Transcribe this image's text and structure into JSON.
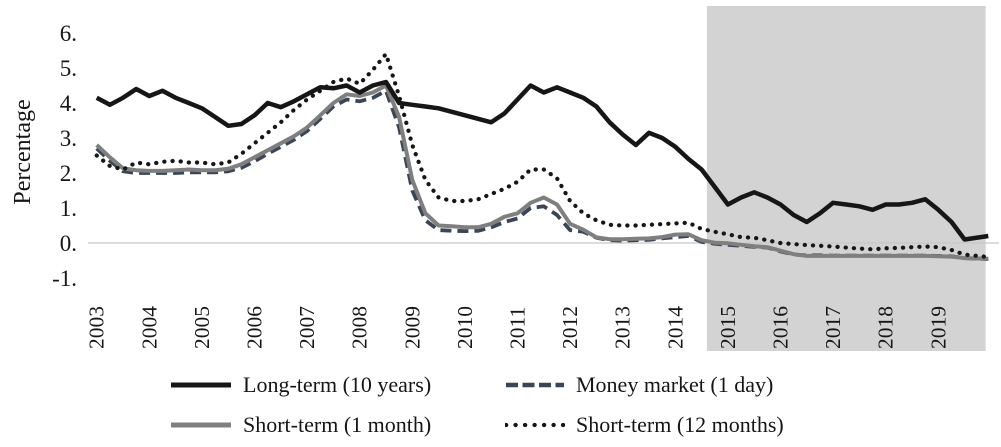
{
  "page": {
    "background": "#ffffff",
    "text_color": "#161616"
  },
  "chart_data": {
    "type": "line",
    "title": "",
    "xlabel": "",
    "ylabel": "Percentage",
    "ylim": [
      -1,
      6
    ],
    "xlim": [
      2003,
      2020
    ],
    "grid": "zero horizontal gridline only",
    "legend_position": "bottom, two columns, two rows",
    "zero_line_color": "#c8c8c8",
    "shaded_region": {
      "from_x": 2014.6,
      "to_x": 2019.9,
      "color": "#d3d3d3",
      "note": "gray highlighted period from mid-2014 through 2019"
    },
    "yticks": {
      "values": [
        6,
        5,
        4,
        3,
        2,
        1,
        0,
        -1
      ],
      "labels": [
        "6.",
        "5.",
        "4.",
        "3.",
        "2.",
        "1.",
        "0.",
        "-1."
      ]
    },
    "xticks": {
      "values": [
        2003,
        2004,
        2005,
        2006,
        2007,
        2008,
        2009,
        2010,
        2011,
        2012,
        2013,
        2014,
        2015,
        2016,
        2017,
        2018,
        2019
      ],
      "labels": [
        "2003",
        "2004",
        "2005",
        "2006",
        "2007",
        "2008",
        "2009",
        "2010",
        "2011",
        "2012",
        "2013",
        "2014",
        "2015",
        "2016",
        "2017",
        "2018",
        "2019"
      ]
    },
    "x": [
      2003,
      2003.25,
      2003.5,
      2003.75,
      2004,
      2004.25,
      2004.5,
      2004.75,
      2005,
      2005.25,
      2005.5,
      2005.75,
      2006,
      2006.25,
      2006.5,
      2006.75,
      2007,
      2007.25,
      2007.5,
      2007.75,
      2008,
      2008.25,
      2008.5,
      2008.75,
      2009,
      2009.25,
      2009.5,
      2009.75,
      2010,
      2010.25,
      2010.5,
      2010.75,
      2011,
      2011.25,
      2011.5,
      2011.75,
      2012,
      2012.25,
      2012.5,
      2012.75,
      2013,
      2013.25,
      2013.5,
      2013.75,
      2014,
      2014.25,
      2014.5,
      2014.75,
      2015,
      2015.25,
      2015.5,
      2015.75,
      2016,
      2016.25,
      2016.5,
      2016.75,
      2017,
      2017.25,
      2017.5,
      2017.75,
      2018,
      2018.25,
      2018.5,
      2018.75,
      2019,
      2019.25,
      2019.5,
      2019.95
    ],
    "series": [
      {
        "name": "Long-term (10 years)",
        "color": "#161616",
        "line_style": "solid",
        "stroke_width": 4.5,
        "values": [
          4.15,
          3.95,
          4.15,
          4.4,
          4.2,
          4.35,
          4.15,
          4.0,
          3.85,
          3.6,
          3.35,
          3.4,
          3.65,
          4.0,
          3.88,
          4.05,
          4.25,
          4.45,
          4.42,
          4.5,
          4.3,
          4.5,
          4.6,
          4.0,
          3.95,
          3.9,
          3.85,
          3.75,
          3.65,
          3.55,
          3.45,
          3.7,
          4.1,
          4.5,
          4.3,
          4.45,
          4.3,
          4.15,
          3.9,
          3.45,
          3.1,
          2.8,
          3.15,
          3.0,
          2.75,
          2.4,
          2.1,
          1.6,
          1.1,
          1.3,
          1.45,
          1.3,
          1.1,
          0.8,
          0.6,
          0.85,
          1.15,
          1.1,
          1.05,
          0.95,
          1.1,
          1.1,
          1.15,
          1.25,
          0.95,
          0.6,
          0.1,
          0.2
        ]
      },
      {
        "name": "Money market (1 day)",
        "color": "#3a4556",
        "line_style": "dashed",
        "stroke_width": 3.8,
        "values": [
          2.7,
          2.35,
          2.05,
          2.0,
          2.0,
          2.0,
          2.0,
          2.02,
          2.02,
          2.02,
          2.05,
          2.15,
          2.33,
          2.55,
          2.75,
          2.95,
          3.2,
          3.55,
          3.9,
          4.1,
          4.05,
          4.15,
          4.35,
          3.3,
          1.5,
          0.65,
          0.37,
          0.35,
          0.34,
          0.35,
          0.45,
          0.6,
          0.7,
          1.0,
          1.05,
          0.8,
          0.37,
          0.32,
          0.15,
          0.08,
          0.07,
          0.08,
          0.09,
          0.13,
          0.17,
          0.2,
          0.03,
          -0.02,
          -0.05,
          -0.08,
          -0.11,
          -0.13,
          -0.24,
          -0.33,
          -0.35,
          -0.35,
          -0.36,
          -0.36,
          -0.36,
          -0.36,
          -0.36,
          -0.36,
          -0.36,
          -0.36,
          -0.37,
          -0.38,
          -0.43,
          -0.46
        ]
      },
      {
        "name": "Short-term (1 month)",
        "color": "#7f7f7f",
        "line_style": "solid",
        "stroke_width": 4,
        "values": [
          2.8,
          2.45,
          2.13,
          2.08,
          2.06,
          2.06,
          2.08,
          2.1,
          2.08,
          2.08,
          2.12,
          2.25,
          2.45,
          2.65,
          2.85,
          3.05,
          3.3,
          3.65,
          4.0,
          4.25,
          4.2,
          4.3,
          4.5,
          3.6,
          1.8,
          0.85,
          0.5,
          0.48,
          0.45,
          0.45,
          0.55,
          0.75,
          0.85,
          1.15,
          1.3,
          1.1,
          0.55,
          0.38,
          0.16,
          0.11,
          0.11,
          0.12,
          0.13,
          0.17,
          0.24,
          0.25,
          0.08,
          0.01,
          -0.01,
          -0.05,
          -0.09,
          -0.12,
          -0.22,
          -0.32,
          -0.37,
          -0.37,
          -0.37,
          -0.37,
          -0.37,
          -0.37,
          -0.37,
          -0.37,
          -0.37,
          -0.37,
          -0.38,
          -0.39,
          -0.43,
          -0.45
        ]
      },
      {
        "name": "Short-term (12 months)",
        "color": "#161616",
        "line_style": "dotted",
        "stroke_width": 4.2,
        "values": [
          2.5,
          2.2,
          2.1,
          2.3,
          2.25,
          2.32,
          2.35,
          2.3,
          2.3,
          2.25,
          2.3,
          2.55,
          2.85,
          3.15,
          3.45,
          3.8,
          4.1,
          4.35,
          4.6,
          4.7,
          4.55,
          4.95,
          5.4,
          4.2,
          2.8,
          1.8,
          1.3,
          1.2,
          1.2,
          1.25,
          1.4,
          1.55,
          1.75,
          2.1,
          2.1,
          1.85,
          1.2,
          0.85,
          0.65,
          0.52,
          0.5,
          0.5,
          0.52,
          0.54,
          0.56,
          0.58,
          0.4,
          0.32,
          0.25,
          0.17,
          0.15,
          0.08,
          0.0,
          -0.03,
          -0.06,
          -0.08,
          -0.1,
          -0.13,
          -0.16,
          -0.18,
          -0.15,
          -0.14,
          -0.12,
          -0.1,
          -0.12,
          -0.2,
          -0.33,
          -0.4
        ]
      }
    ]
  }
}
